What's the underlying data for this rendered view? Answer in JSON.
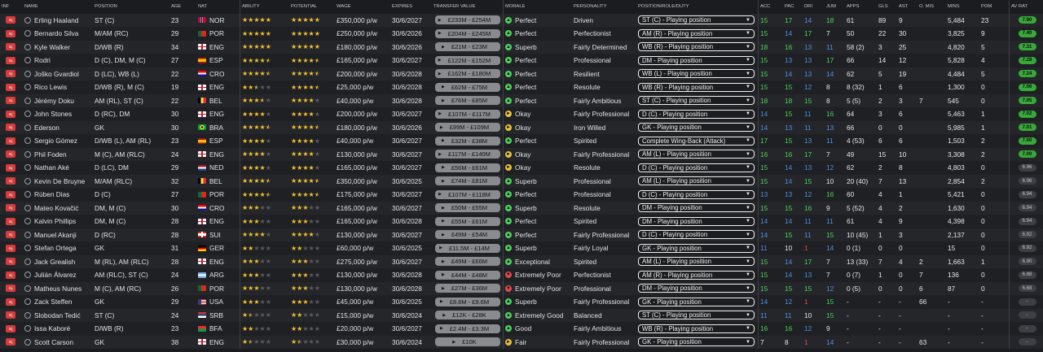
{
  "columns": {
    "inf": "INF",
    "name": "NAME",
    "position": "POSITION",
    "age": "AGE",
    "nat": "NAT",
    "ability": "ABILITY",
    "potential": "POTENTIAL",
    "wage": "WAGE",
    "expires": "EXPIRES",
    "transfer_value": "TRANSFER VALUE",
    "morale": "MORALE",
    "personality": "PERSONALITY",
    "role": "POSITION/ROLE/DUTY",
    "acc": "ACC",
    "pac": "PAC",
    "dri": "DRI",
    "jum": "JUM",
    "apps": "APPS",
    "gls": "GLS",
    "ast": "AST",
    "o_mis": "O. MIS",
    "mins": "MINS",
    "pom": "POM",
    "avrat": "AV RAT"
  },
  "colors": {
    "accent_green": "#4cd45a",
    "blue": "#4f8fe3",
    "red": "#e04a4a",
    "star": "#f2c230"
  },
  "players": [
    {
      "inf": "Inj",
      "name": "Erling Haaland",
      "position": "ST (C)",
      "age": "23",
      "nat": "NOR",
      "ability": 5,
      "potential": 5,
      "wage": "£350,000 p/w",
      "expires": "30/6/2027",
      "value": "£233M - £254M",
      "morale": "Perfect",
      "personality": "Driven",
      "role": "ST (C) - Playing position",
      "acc": "15",
      "pac": "17",
      "dri": "14",
      "jum": "18",
      "apps": "61",
      "gls": "89",
      "ast": "9",
      "omis": "",
      "mins": "5,484",
      "pom": "23",
      "av": "7.90"
    },
    {
      "inf": "Inj",
      "name": "Bernardo Silva",
      "position": "M/AM (RC)",
      "age": "29",
      "nat": "POR",
      "ability": 5,
      "potential": 5,
      "wage": "£250,000 p/w",
      "expires": "30/6/2026",
      "value": "£204M - £245M",
      "morale": "Perfect",
      "personality": "Perfectionist",
      "role": "AM (R) - Playing position",
      "acc": "15",
      "pac": "14",
      "dri": "17",
      "jum": "7",
      "apps": "50",
      "gls": "22",
      "ast": "30",
      "omis": "",
      "mins": "3,825",
      "pom": "9",
      "av": "7.40"
    },
    {
      "inf": "Inj",
      "name": "Kyle Walker",
      "position": "D/WB (R)",
      "age": "34",
      "nat": "ENG",
      "ability": 5,
      "potential": 5,
      "wage": "£180,000 p/w",
      "expires": "30/6/2026",
      "value": "£21M - £23M",
      "morale": "Superb",
      "personality": "Fairly Determined",
      "role": "WB (R) - Playing position",
      "acc": "18",
      "pac": "16",
      "dri": "13",
      "jum": "11",
      "apps": "58 (2)",
      "gls": "3",
      "ast": "25",
      "omis": "",
      "mins": "4,820",
      "pom": "5",
      "av": "7.31"
    },
    {
      "inf": "Inj",
      "name": "Rodri",
      "position": "D (C), DM, M (C)",
      "age": "27",
      "nat": "ESP",
      "ability": 4.5,
      "potential": 4.5,
      "wage": "£165,000 p/w",
      "expires": "30/6/2027",
      "value": "£122M - £152M",
      "morale": "Perfect",
      "personality": "Professional",
      "role": "DM - Playing position",
      "acc": "15",
      "pac": "13",
      "dri": "13",
      "jum": "17",
      "apps": "66",
      "gls": "14",
      "ast": "12",
      "omis": "",
      "mins": "5,828",
      "pom": "4",
      "av": "7.28"
    },
    {
      "inf": "Inj",
      "name": "Joško Gvardiol",
      "position": "D (LC), WB (L)",
      "age": "22",
      "nat": "CRO",
      "ability": 4.5,
      "potential": 4.5,
      "wage": "£200,000 p/w",
      "expires": "30/6/2028",
      "value": "£162M - £180M",
      "morale": "Perfect",
      "personality": "Resilient",
      "role": "WB (L) - Playing position",
      "acc": "15",
      "pac": "14",
      "dri": "13",
      "jum": "14",
      "apps": "62",
      "gls": "5",
      "ast": "19",
      "omis": "",
      "mins": "4,484",
      "pom": "5",
      "av": "7.24"
    },
    {
      "inf": "Inj",
      "name": "Rico Lewis",
      "position": "D/WB (R), M (C)",
      "age": "19",
      "nat": "ENG",
      "ability": 2.5,
      "potential": 4.5,
      "wage": "£25,000 p/w",
      "expires": "30/6/2028",
      "value": "£62M - £75M",
      "morale": "Perfect",
      "personality": "Resolute",
      "role": "WB (R) - Playing position",
      "acc": "15",
      "pac": "15",
      "dri": "12",
      "jum": "8",
      "apps": "8 (32)",
      "gls": "1",
      "ast": "6",
      "omis": "",
      "mins": "1,300",
      "pom": "0",
      "av": "7.06"
    },
    {
      "inf": "Inj",
      "name": "Jérémy Doku",
      "position": "AM (RL), ST (C)",
      "age": "22",
      "nat": "BEL",
      "ability": 3.5,
      "potential": 4,
      "wage": "£40,000 p/w",
      "expires": "30/6/2028",
      "value": "£76M - £85M",
      "morale": "Perfect",
      "personality": "Fairly Ambitious",
      "role": "ST (C) - Playing position",
      "acc": "18",
      "pac": "18",
      "dri": "15",
      "jum": "8",
      "apps": "5 (5)",
      "gls": "2",
      "ast": "3",
      "omis": "7",
      "mins": "545",
      "pom": "0",
      "av": "7.05"
    },
    {
      "inf": "Inj",
      "name": "John Stones",
      "position": "D (RC), DM",
      "age": "30",
      "nat": "ENG",
      "ability": 4,
      "potential": 4,
      "wage": "£200,000 p/w",
      "expires": "30/6/2027",
      "value": "£107M - £117M",
      "morale": "Okay",
      "personality": "Fairly Professional",
      "role": "D (C) - Playing position",
      "acc": "14",
      "pac": "15",
      "dri": "11",
      "jum": "16",
      "apps": "64",
      "gls": "3",
      "ast": "6",
      "omis": "",
      "mins": "5,463",
      "pom": "1",
      "av": "7.02"
    },
    {
      "inf": "Inj",
      "name": "Ederson",
      "position": "GK",
      "age": "30",
      "nat": "BRA",
      "ability": 4.5,
      "potential": 4.5,
      "wage": "£180,000 p/w",
      "expires": "30/6/2026",
      "value": "£99M - £109M",
      "morale": "Okay",
      "personality": "Iron Willed",
      "role": "GK - Playing position",
      "acc": "14",
      "pac": "13",
      "dri": "11",
      "jum": "13",
      "apps": "66",
      "gls": "0",
      "ast": "0",
      "omis": "",
      "mins": "5,985",
      "pom": "1",
      "av": "7.01"
    },
    {
      "inf": "Inj",
      "name": "Sergio Gómez",
      "position": "D/WB (L), AM (RL)",
      "age": "23",
      "nat": "ESP",
      "ability": 4,
      "potential": 4,
      "wage": "£40,000 p/w",
      "expires": "30/6/2027",
      "value": "£32M - £38M",
      "morale": "Perfect",
      "personality": "Spirited",
      "role": "Complete Wing-Back (Attack)",
      "acc": "17",
      "pac": "15",
      "dri": "13",
      "jum": "11",
      "apps": "4 (53)",
      "gls": "6",
      "ast": "6",
      "omis": "",
      "mins": "1,503",
      "pom": "2",
      "av": "7.00"
    },
    {
      "inf": "Inj",
      "name": "Phil Foden",
      "position": "M (C), AM (RLC)",
      "age": "24",
      "nat": "ENG",
      "ability": 4,
      "potential": 4,
      "wage": "£130,000 p/w",
      "expires": "30/6/2027",
      "value": "£117M - £140M",
      "morale": "Okay",
      "personality": "Fairly Professional",
      "role": "AM (L) - Playing position",
      "acc": "16",
      "pac": "16",
      "dri": "17",
      "jum": "7",
      "apps": "49",
      "gls": "15",
      "ast": "10",
      "omis": "",
      "mins": "3,308",
      "pom": "2",
      "av": "7.00"
    },
    {
      "inf": "Inj",
      "name": "Nathan Aké",
      "position": "D (LC), DM",
      "age": "29",
      "nat": "NED",
      "ability": 4,
      "potential": 4,
      "wage": "£165,000 p/w",
      "expires": "30/6/2027",
      "value": "£56M - £61M",
      "morale": "Okay",
      "personality": "Resolute",
      "role": "D (C) - Playing position",
      "acc": "15",
      "pac": "14",
      "dri": "13",
      "jum": "12",
      "apps": "62",
      "gls": "2",
      "ast": "8",
      "omis": "",
      "mins": "4,803",
      "pom": "0",
      "av": "6.96"
    },
    {
      "inf": "Inj",
      "name": "Kevin De Bruyne",
      "position": "M/AM (RLC)",
      "age": "32",
      "nat": "BEL",
      "ability": 4.5,
      "potential": 4.5,
      "wage": "£350,000 p/w",
      "expires": "30/6/2025",
      "value": "£74M - £81M",
      "morale": "Superb",
      "personality": "Professional",
      "role": "AM (L) - Playing position",
      "acc": "15",
      "pac": "14",
      "dri": "15",
      "jum": "10",
      "apps": "20 (40)",
      "gls": "7",
      "ast": "13",
      "omis": "",
      "mins": "2,854",
      "pom": "2",
      "av": "6.96"
    },
    {
      "inf": "Inj",
      "name": "Rúben Dias",
      "position": "D (C)",
      "age": "27",
      "nat": "POR",
      "ability": 4.5,
      "potential": 4.5,
      "wage": "£175,000 p/w",
      "expires": "30/6/2027",
      "value": "£107M - £118M",
      "morale": "Perfect",
      "personality": "Professional",
      "role": "D (C) - Playing position",
      "acc": "13",
      "pac": "13",
      "dri": "12",
      "jum": "16",
      "apps": "60",
      "gls": "4",
      "ast": "1",
      "omis": "",
      "mins": "5,421",
      "pom": "0",
      "av": "6.94"
    },
    {
      "inf": "Inj",
      "name": "Mateo Kovačić",
      "position": "DM, M (C)",
      "age": "30",
      "nat": "CRO",
      "ability": 3,
      "potential": 3,
      "wage": "£165,000 p/w",
      "expires": "30/6/2027",
      "value": "£50M - £55M",
      "morale": "Superb",
      "personality": "Resolute",
      "role": "DM - Playing position",
      "acc": "15",
      "pac": "15",
      "dri": "16",
      "jum": "9",
      "apps": "5 (52)",
      "gls": "4",
      "ast": "2",
      "omis": "",
      "mins": "1,630",
      "pom": "0",
      "av": "6.94"
    },
    {
      "inf": "Inj",
      "name": "Kalvin Phillips",
      "position": "DM, M (C)",
      "age": "28",
      "nat": "ENG",
      "ability": 3,
      "potential": 3,
      "wage": "£165,000 p/w",
      "expires": "30/6/2028",
      "value": "£55M - £61M",
      "morale": "Perfect",
      "personality": "Spirited",
      "role": "DM - Playing position",
      "acc": "14",
      "pac": "14",
      "dri": "11",
      "jum": "11",
      "apps": "61",
      "gls": "4",
      "ast": "9",
      "omis": "",
      "mins": "4,398",
      "pom": "0",
      "av": "6.94"
    },
    {
      "inf": "Inj",
      "name": "Manuel Akanji",
      "position": "D (RC)",
      "age": "28",
      "nat": "SUI",
      "ability": 4,
      "potential": 4,
      "wage": "£130,000 p/w",
      "expires": "30/6/2027",
      "value": "£49M - £54M",
      "morale": "Perfect",
      "personality": "Fairly Professional",
      "role": "D (C) - Playing position",
      "acc": "14",
      "pac": "15",
      "dri": "11",
      "jum": "15",
      "apps": "10 (45)",
      "gls": "1",
      "ast": "3",
      "omis": "",
      "mins": "2,137",
      "pom": "0",
      "av": "6.92"
    },
    {
      "inf": "Inj",
      "name": "Stefan Ortega",
      "position": "GK",
      "age": "31",
      "nat": "GER",
      "ability": 2,
      "potential": 2,
      "wage": "£60,000 p/w",
      "expires": "30/6/2025",
      "value": "£11.5M - £14M",
      "morale": "Superb",
      "personality": "Fairly Loyal",
      "role": "GK - Playing position",
      "acc": "11",
      "pac": "10",
      "dri": "1",
      "jum": "14",
      "apps": "0 (1)",
      "gls": "0",
      "ast": "0",
      "omis": "",
      "mins": "15",
      "pom": "0",
      "av": "6.92"
    },
    {
      "inf": "Inj",
      "name": "Jack Grealish",
      "position": "M (RL), AM (RLC)",
      "age": "28",
      "nat": "ENG",
      "ability": 3,
      "potential": 3,
      "wage": "£275,000 p/w",
      "expires": "30/6/2027",
      "value": "£49M - £66M",
      "morale": "Exceptional",
      "personality": "Spirited",
      "role": "AM (L) - Playing position",
      "acc": "15",
      "pac": "14",
      "dri": "17",
      "jum": "7",
      "apps": "13 (33)",
      "gls": "7",
      "ast": "4",
      "omis": "2",
      "mins": "1,663",
      "pom": "1",
      "av": "6.90"
    },
    {
      "inf": "Inj",
      "name": "Julián Álvarez",
      "position": "AM (RLC), ST (C)",
      "age": "24",
      "nat": "ARG",
      "ability": 3,
      "potential": 3,
      "wage": "£130,000 p/w",
      "expires": "30/6/2028",
      "value": "£44M - £48M",
      "morale": "Extremely Poor",
      "personality": "Perfectionist",
      "role": "AM (R) - Playing position",
      "acc": "15",
      "pac": "14",
      "dri": "13",
      "jum": "7",
      "apps": "0 (7)",
      "gls": "1",
      "ast": "0",
      "omis": "7",
      "mins": "136",
      "pom": "0",
      "av": "6.88"
    },
    {
      "inf": "Inj",
      "name": "Matheus Nunes",
      "position": "M (C), AM (RC)",
      "age": "26",
      "nat": "POR",
      "ability": 3,
      "potential": 3,
      "wage": "£130,000 p/w",
      "expires": "30/6/2028",
      "value": "£27M - £36M",
      "morale": "Extremely Poor",
      "personality": "Professional",
      "role": "DM - Playing position",
      "acc": "15",
      "pac": "15",
      "dri": "15",
      "jum": "12",
      "apps": "0 (5)",
      "gls": "0",
      "ast": "0",
      "omis": "6",
      "mins": "87",
      "pom": "0",
      "av": "6.68"
    },
    {
      "inf": "Inj",
      "name": "Zack Steffen",
      "position": "GK",
      "age": "29",
      "nat": "USA",
      "ability": 3,
      "potential": 3,
      "wage": "£45,000 p/w",
      "expires": "30/6/2025",
      "value": "£8.8M - £9.6M",
      "morale": "Superb",
      "personality": "Fairly Professional",
      "role": "GK - Playing position",
      "acc": "14",
      "pac": "12",
      "dri": "1",
      "jum": "15",
      "apps": "-",
      "gls": "-",
      "ast": "-",
      "omis": "66",
      "mins": "-",
      "pom": "-",
      "av": "-"
    },
    {
      "inf": "Inj",
      "name": "Slobodan Tedić",
      "position": "ST (C)",
      "age": "24",
      "nat": "SRB",
      "ability": 1.5,
      "potential": 2,
      "wage": "£15,000 p/w",
      "expires": "30/6/2024",
      "value": "£12K - £28K",
      "morale": "Extremely Good",
      "personality": "Balanced",
      "role": "ST (C) - Playing position",
      "acc": "11",
      "pac": "11",
      "dri": "10",
      "jum": "15",
      "apps": "-",
      "gls": "-",
      "ast": "-",
      "omis": "",
      "mins": "-",
      "pom": "-",
      "av": "-"
    },
    {
      "inf": "Inj",
      "name": "Issa Kaboré",
      "position": "D/WB (R)",
      "age": "23",
      "nat": "BFA",
      "ability": 2,
      "potential": 2,
      "wage": "£20,000 p/w",
      "expires": "30/6/2027",
      "value": "£2.4M - £3.3M",
      "morale": "Good",
      "personality": "Fairly Ambitious",
      "role": "WB (R) - Playing position",
      "acc": "16",
      "pac": "16",
      "dri": "12",
      "jum": "9",
      "apps": "-",
      "gls": "-",
      "ast": "-",
      "omis": "",
      "mins": "-",
      "pom": "-",
      "av": "-"
    },
    {
      "inf": "Inj",
      "name": "Scott Carson",
      "position": "GK",
      "age": "38",
      "nat": "ENG",
      "ability": 1.5,
      "potential": 1.5,
      "wage": "£30,000 p/w",
      "expires": "30/6/2024",
      "value": "£10K",
      "morale": "Fair",
      "personality": "Fairly Professional",
      "role": "GK - Playing position",
      "acc": "7",
      "pac": "8",
      "dri": "1",
      "jum": "14",
      "apps": "-",
      "gls": "-",
      "ast": "-",
      "omis": "63",
      "mins": "-",
      "pom": "-",
      "av": "-"
    }
  ]
}
